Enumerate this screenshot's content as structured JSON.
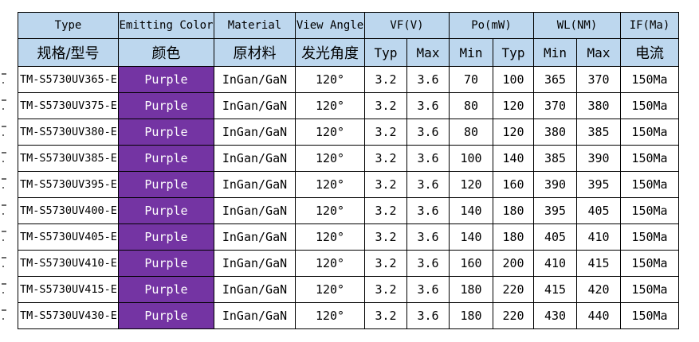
{
  "colors": {
    "page_bg": "#FFFFFF",
    "header_bg": "#BDD7EE",
    "purple": "#7434A3",
    "purple_text": "#FFFFFF",
    "border": "#000000"
  },
  "table": {
    "header_row1": {
      "type": "Type",
      "emitting_color": "Emitting Color",
      "material": "Material",
      "view_angle": "View Angle",
      "vf": "VF(V)",
      "po": "Po(mW)",
      "wl": "WL(NM)",
      "if": "IF(Ma)"
    },
    "header_row2": {
      "type_cn": "规格/型号",
      "color_cn": "颜色",
      "material_cn": "原材料",
      "view_angle_cn": "发光角度",
      "vf_typ": "Typ",
      "vf_max": "Max",
      "po_min": "Min",
      "po_typ": "Typ",
      "wl_min": "Min",
      "wl_max": "Max",
      "current_cn": "电流"
    },
    "row_keys": [
      "type",
      "color",
      "material",
      "view_angle",
      "vf_typ",
      "vf_max",
      "po_min",
      "po_typ",
      "wl_min",
      "wl_max",
      "if_ma"
    ],
    "rows": [
      {
        "type": "TM-S5730UV365-E",
        "color": "Purple",
        "material": "InGan/GaN",
        "view_angle": "120°",
        "vf_typ": "3.2",
        "vf_max": "3.6",
        "po_min": "70",
        "po_typ": "100",
        "wl_min": "365",
        "wl_max": "370",
        "if_ma": "150Ma"
      },
      {
        "type": "TM-S5730UV375-E",
        "color": "Purple",
        "material": "InGan/GaN",
        "view_angle": "120°",
        "vf_typ": "3.2",
        "vf_max": "3.6",
        "po_min": "80",
        "po_typ": "120",
        "wl_min": "370",
        "wl_max": "380",
        "if_ma": "150Ma"
      },
      {
        "type": "TM-S5730UV380-E",
        "color": "Purple",
        "material": "InGan/GaN",
        "view_angle": "120°",
        "vf_typ": "3.2",
        "vf_max": "3.6",
        "po_min": "80",
        "po_typ": "120",
        "wl_min": "380",
        "wl_max": "385",
        "if_ma": "150Ma"
      },
      {
        "type": "TM-S5730UV385-E",
        "color": "Purple",
        "material": "InGan/GaN",
        "view_angle": "120°",
        "vf_typ": "3.2",
        "vf_max": "3.6",
        "po_min": "100",
        "po_typ": "140",
        "wl_min": "385",
        "wl_max": "390",
        "if_ma": "150Ma"
      },
      {
        "type": "TM-S5730UV395-E",
        "color": "Purple",
        "material": "InGan/GaN",
        "view_angle": "120°",
        "vf_typ": "3.2",
        "vf_max": "3.6",
        "po_min": "120",
        "po_typ": "160",
        "wl_min": "390",
        "wl_max": "395",
        "if_ma": "150Ma"
      },
      {
        "type": "TM-S5730UV400-E",
        "color": "Purple",
        "material": "InGan/GaN",
        "view_angle": "120°",
        "vf_typ": "3.2",
        "vf_max": "3.6",
        "po_min": "140",
        "po_typ": "180",
        "wl_min": "395",
        "wl_max": "405",
        "if_ma": "150Ma"
      },
      {
        "type": "TM-S5730UV405-E",
        "color": "Purple",
        "material": "InGan/GaN",
        "view_angle": "120°",
        "vf_typ": "3.2",
        "vf_max": "3.6",
        "po_min": "140",
        "po_typ": "180",
        "wl_min": "405",
        "wl_max": "410",
        "if_ma": "150Ma"
      },
      {
        "type": "TM-S5730UV410-E",
        "color": "Purple",
        "material": "InGan/GaN",
        "view_angle": "120°",
        "vf_typ": "3.2",
        "vf_max": "3.6",
        "po_min": "160",
        "po_typ": "200",
        "wl_min": "410",
        "wl_max": "415",
        "if_ma": "150Ma"
      },
      {
        "type": "TM-S5730UV415-E",
        "color": "Purple",
        "material": "InGan/GaN",
        "view_angle": "120°",
        "vf_typ": "3.2",
        "vf_max": "3.6",
        "po_min": "180",
        "po_typ": "220",
        "wl_min": "415",
        "wl_max": "420",
        "if_ma": "150Ma"
      },
      {
        "type": "TM-S5730UV430-E",
        "color": "Purple",
        "material": "InGan/GaN",
        "view_angle": "120°",
        "vf_typ": "3.2",
        "vf_max": "3.6",
        "po_min": "180",
        "po_typ": "220",
        "wl_min": "430",
        "wl_max": "440",
        "if_ma": "150Ma"
      }
    ]
  }
}
